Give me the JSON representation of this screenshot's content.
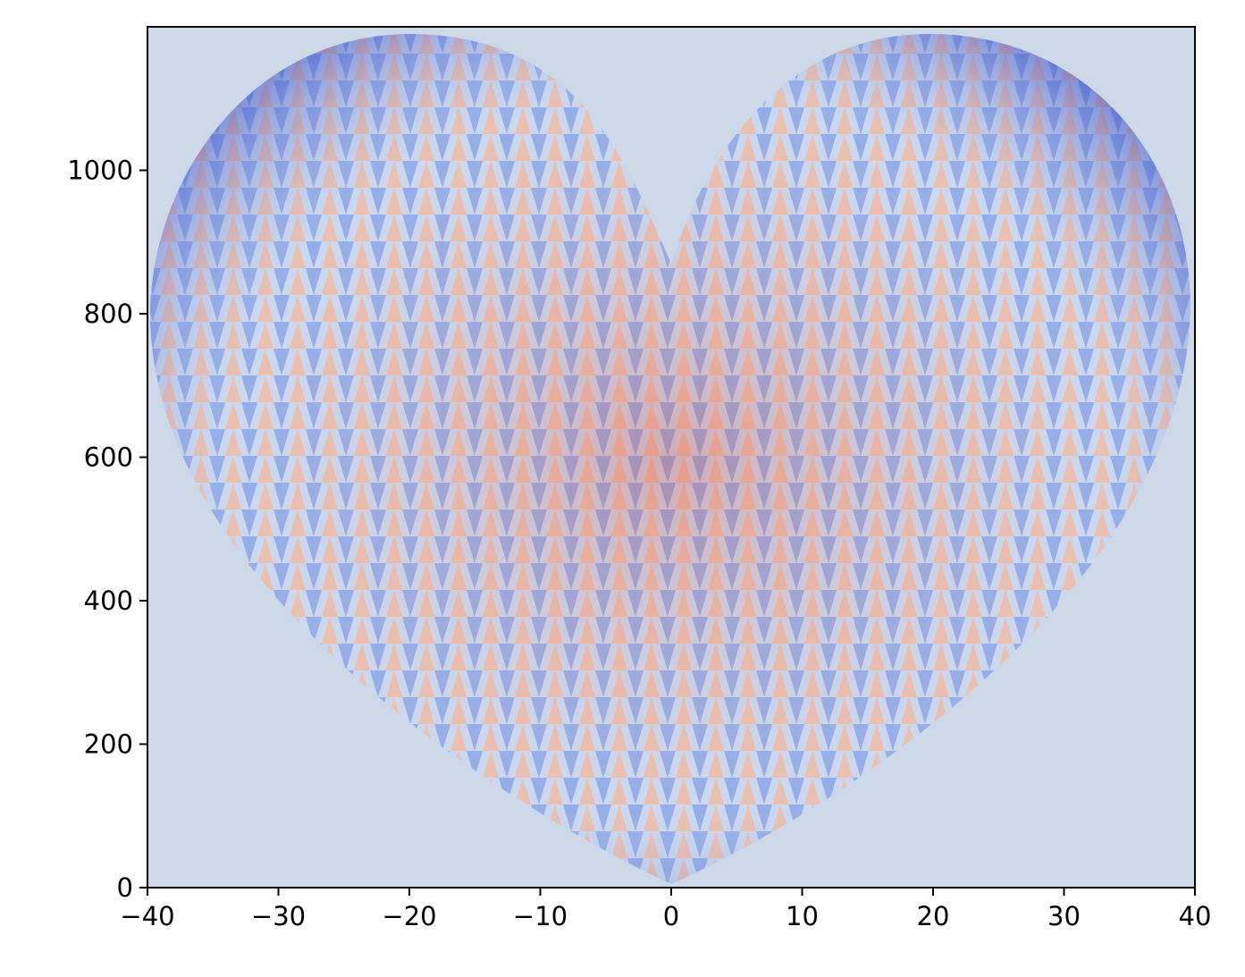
{
  "chart_data": {
    "type": "image",
    "colormap": "coolwarm",
    "xlim": [
      -40,
      40
    ],
    "ylim": [
      0,
      1200
    ],
    "xticks": [
      {
        "value": -40,
        "label": "−40"
      },
      {
        "value": -30,
        "label": "−30"
      },
      {
        "value": -20,
        "label": "−20"
      },
      {
        "value": -10,
        "label": "−10"
      },
      0,
      10,
      20,
      30,
      40
    ],
    "yticks": [
      0,
      200,
      400,
      600,
      800,
      1000
    ]
  }
}
